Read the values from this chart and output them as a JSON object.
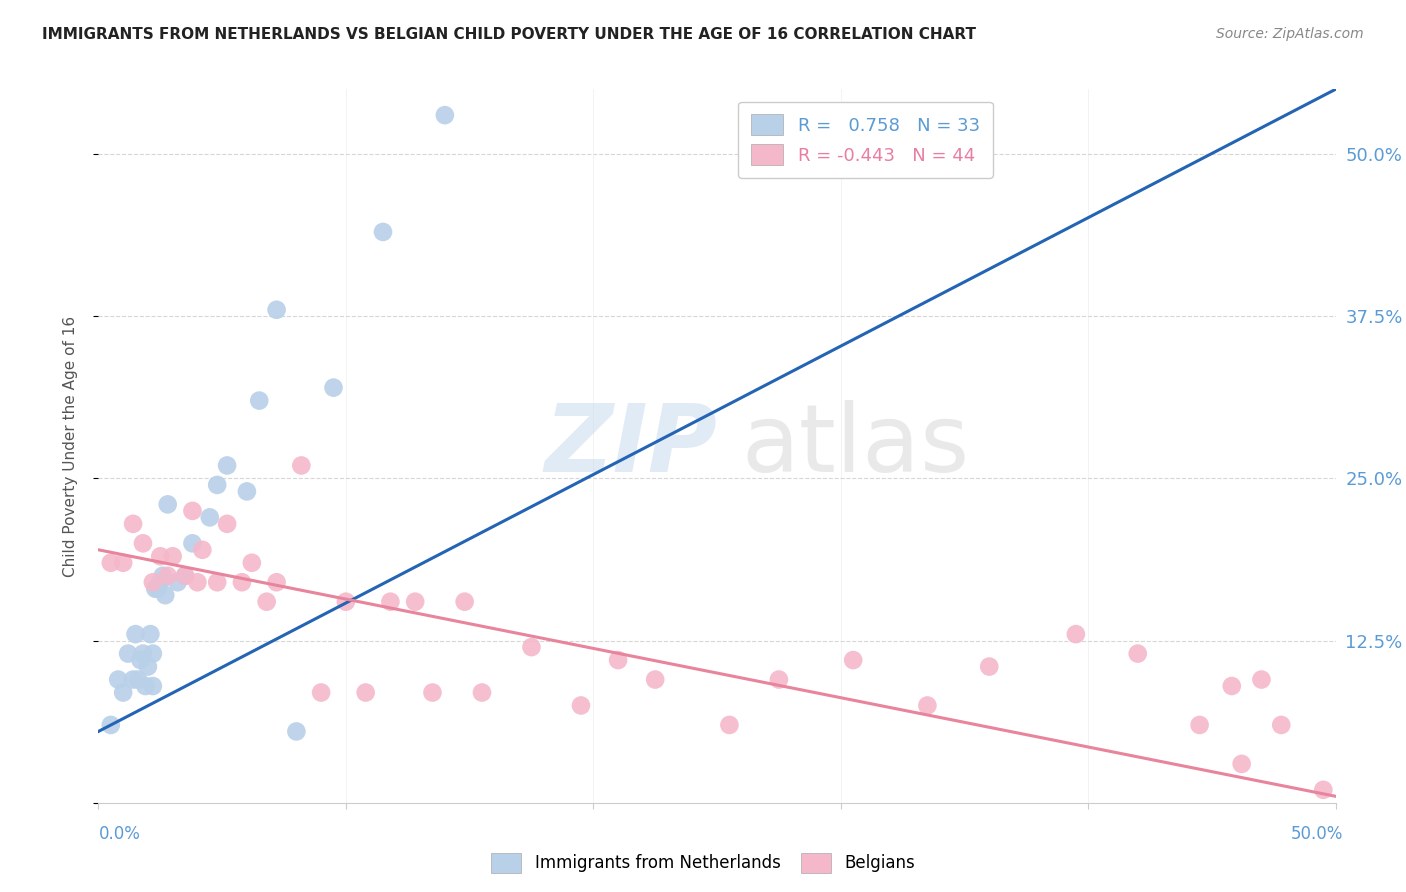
{
  "title": "IMMIGRANTS FROM NETHERLANDS VS BELGIAN CHILD POVERTY UNDER THE AGE OF 16 CORRELATION CHART",
  "source": "Source: ZipAtlas.com",
  "ylabel": "Child Poverty Under the Age of 16",
  "legend_label1": "Immigrants from Netherlands",
  "legend_label2": "Belgians",
  "R1": 0.758,
  "N1": 33,
  "R2": -0.443,
  "N2": 44,
  "blue_color": "#b8d0e8",
  "pink_color": "#f5b8cb",
  "line_blue": "#2464b4",
  "line_pink": "#e8849c",
  "xlim": [
    0.0,
    0.5
  ],
  "ylim": [
    0.0,
    0.55
  ],
  "ytick_positions": [
    0.0,
    0.125,
    0.25,
    0.375,
    0.5
  ],
  "ytick_labels": [
    "",
    "12.5%",
    "25.0%",
    "37.5%",
    "50.0%"
  ],
  "blue_scatter_x": [
    0.005,
    0.008,
    0.01,
    0.012,
    0.014,
    0.015,
    0.016,
    0.017,
    0.018,
    0.019,
    0.02,
    0.021,
    0.022,
    0.022,
    0.023,
    0.024,
    0.025,
    0.026,
    0.027,
    0.028,
    0.032,
    0.035,
    0.038,
    0.045,
    0.048,
    0.052,
    0.06,
    0.065,
    0.072,
    0.08,
    0.095,
    0.115,
    0.14
  ],
  "blue_scatter_y": [
    0.06,
    0.095,
    0.085,
    0.115,
    0.095,
    0.13,
    0.095,
    0.11,
    0.115,
    0.09,
    0.105,
    0.13,
    0.09,
    0.115,
    0.165,
    0.165,
    0.17,
    0.175,
    0.16,
    0.23,
    0.17,
    0.175,
    0.2,
    0.22,
    0.245,
    0.26,
    0.24,
    0.31,
    0.38,
    0.055,
    0.32,
    0.44,
    0.53
  ],
  "pink_scatter_x": [
    0.005,
    0.01,
    0.014,
    0.018,
    0.022,
    0.025,
    0.028,
    0.03,
    0.035,
    0.038,
    0.04,
    0.042,
    0.048,
    0.052,
    0.058,
    0.062,
    0.068,
    0.072,
    0.082,
    0.09,
    0.1,
    0.108,
    0.118,
    0.128,
    0.135,
    0.148,
    0.155,
    0.175,
    0.195,
    0.21,
    0.225,
    0.255,
    0.275,
    0.305,
    0.335,
    0.36,
    0.395,
    0.42,
    0.445,
    0.458,
    0.462,
    0.47,
    0.478,
    0.495
  ],
  "pink_scatter_y": [
    0.185,
    0.185,
    0.215,
    0.2,
    0.17,
    0.19,
    0.175,
    0.19,
    0.175,
    0.225,
    0.17,
    0.195,
    0.17,
    0.215,
    0.17,
    0.185,
    0.155,
    0.17,
    0.26,
    0.085,
    0.155,
    0.085,
    0.155,
    0.155,
    0.085,
    0.155,
    0.085,
    0.12,
    0.075,
    0.11,
    0.095,
    0.06,
    0.095,
    0.11,
    0.075,
    0.105,
    0.13,
    0.115,
    0.06,
    0.09,
    0.03,
    0.095,
    0.06,
    0.01
  ],
  "blue_line_x": [
    0.0,
    0.5
  ],
  "blue_line_y": [
    0.055,
    0.55
  ],
  "pink_line_x": [
    0.0,
    0.5
  ],
  "pink_line_y": [
    0.195,
    0.005
  ]
}
